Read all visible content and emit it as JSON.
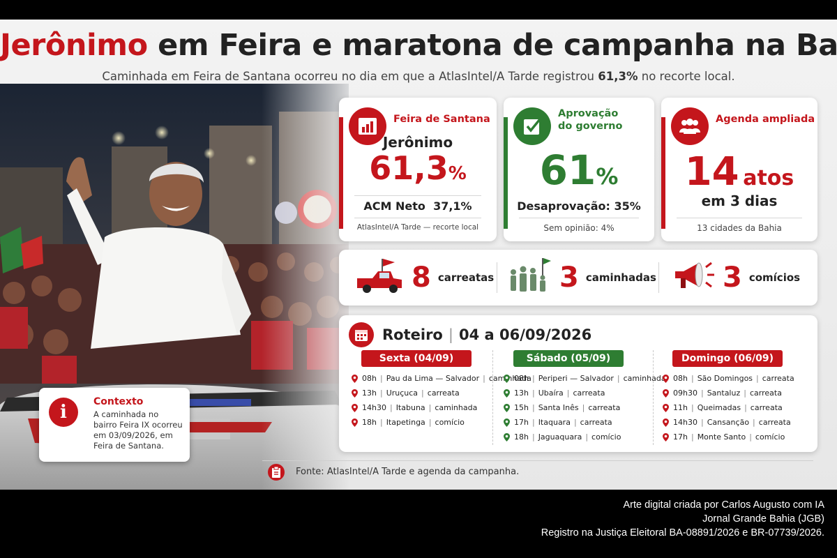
{
  "headline": {
    "name": "Jerônimo",
    "rest": "em Feira e maratona de campanha na Bahia"
  },
  "subtitle": {
    "before": "Caminhada em Feira de Santana ocorreu no dia em que a AtlasIntel/A Tarde registrou",
    "value": "61,3%",
    "after": "no recorte local."
  },
  "colors": {
    "red": "#c4161c",
    "green": "#2e7d32"
  },
  "context": {
    "icon": "info-icon",
    "title": "Contexto",
    "text": "A caminhada no bairro Feira IX ocorreu em 03/09/2026, em Feira de Santana."
  },
  "card_feira": {
    "icon": "bar-chart-icon",
    "title": "Feira de Santana",
    "candidate": "Jerônimo",
    "value": "61,3",
    "unit": "%",
    "rival": "ACM Neto",
    "rival_value": "37,1%",
    "source": "AtlasIntel/A Tarde — recorte local"
  },
  "card_aprov": {
    "icon": "checkbox-icon",
    "title_l1": "Aprovação",
    "title_l2": "do governo",
    "value": "61",
    "unit": "%",
    "disapproval": "Desaprovação: 35%",
    "no_opinion": "Sem opinião: 4%"
  },
  "card_agenda": {
    "icon": "people-icon",
    "title": "Agenda ampliada",
    "value": "14",
    "unit": "atos",
    "period": "em 3 dias",
    "cities": "13 cidades da Bahia"
  },
  "modes": [
    {
      "icon": "truck-icon",
      "num": "8",
      "label": "carreatas"
    },
    {
      "icon": "walkers-icon",
      "num": "3",
      "label": "caminhadas"
    },
    {
      "icon": "megaphone-icon",
      "num": "3",
      "label": "comícios"
    }
  ],
  "roteiro": {
    "title": "Roteiro",
    "dates": "04 a 06/09/2026",
    "days": [
      {
        "label": "Sexta (04/09)",
        "color": "#c4161c",
        "items": [
          {
            "time": "08h",
            "place": "Pau da Lima — Salvador",
            "type": "caminhada"
          },
          {
            "time": "13h",
            "place": "Uruçuca",
            "type": "carreata"
          },
          {
            "time": "14h30",
            "place": "Itabuna",
            "type": "caminhada"
          },
          {
            "time": "18h",
            "place": "Itapetinga",
            "type": "comício"
          }
        ]
      },
      {
        "label": "Sábado (05/09)",
        "color": "#2e7d32",
        "items": [
          {
            "time": "08h",
            "place": "Periperi — Salvador",
            "type": "caminhada"
          },
          {
            "time": "13h",
            "place": "Ubaíra",
            "type": "carreata"
          },
          {
            "time": "15h",
            "place": "Santa Inês",
            "type": "carreata"
          },
          {
            "time": "17h",
            "place": "Itaquara",
            "type": "carreata"
          },
          {
            "time": "18h",
            "place": "Jaguaquara",
            "type": "comício"
          }
        ]
      },
      {
        "label": "Domingo (06/09)",
        "color": "#c4161c",
        "items": [
          {
            "time": "08h",
            "place": "São Domingos",
            "type": "carreata"
          },
          {
            "time": "09h30",
            "place": "Santaluz",
            "type": "carreata"
          },
          {
            "time": "11h",
            "place": "Queimadas",
            "type": "carreata"
          },
          {
            "time": "14h30",
            "place": "Cansanção",
            "type": "carreata"
          },
          {
            "time": "17h",
            "place": "Monte Santo",
            "type": "comício"
          }
        ]
      }
    ]
  },
  "source": {
    "icon": "clipboard-icon",
    "text": "Fonte: AtlasIntel/A Tarde e agenda da campanha."
  },
  "credits": [
    "Arte digital criada por Carlos Augusto com IA",
    "Jornal Grande Bahia (JGB)",
    "Registro na Justiça Eleitoral BA-08891/2026 e BR-07739/2026."
  ]
}
